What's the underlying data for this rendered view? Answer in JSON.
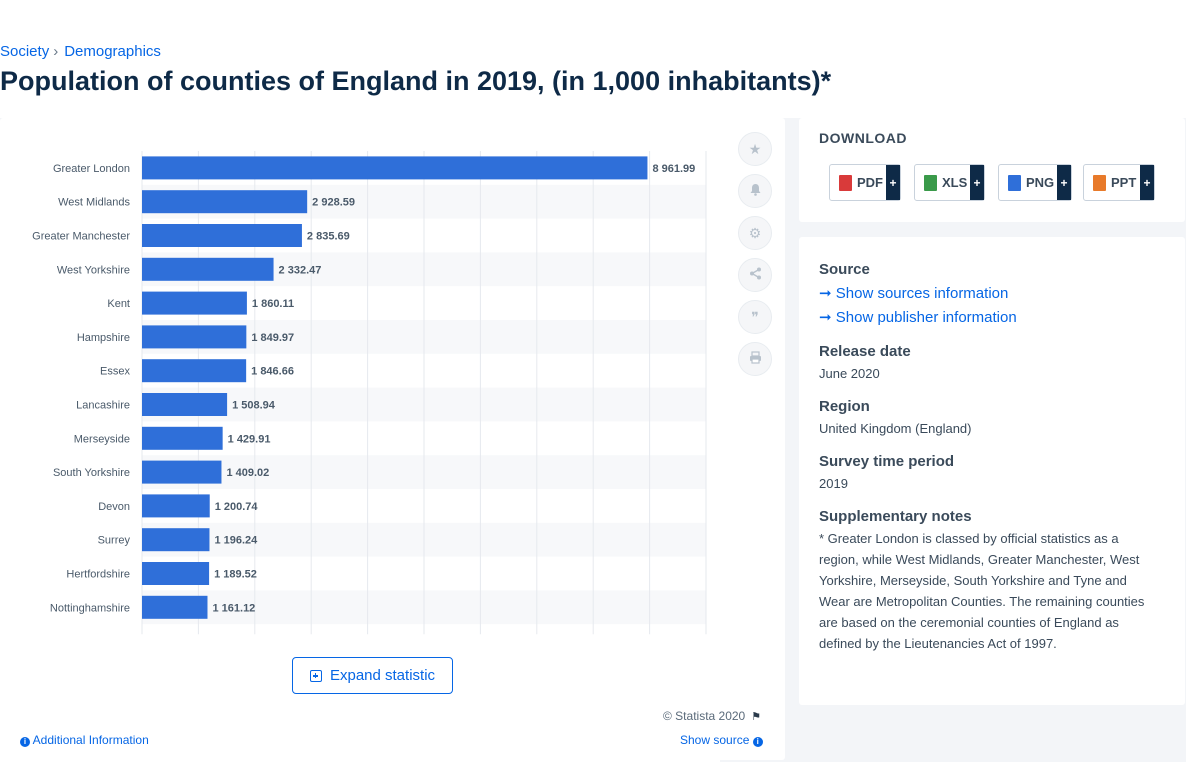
{
  "breadcrumb": {
    "items": [
      "Society",
      "Demographics"
    ],
    "separator": "›"
  },
  "page_title": "Population of counties of England in 2019, (in 1,000 inhabitants)*",
  "chart_data": {
    "type": "bar",
    "orientation": "horizontal",
    "categories": [
      "Greater London",
      "West Midlands",
      "Greater Manchester",
      "West Yorkshire",
      "Kent",
      "Hampshire",
      "Essex",
      "Lancashire",
      "Merseyside",
      "South Yorkshire",
      "Devon",
      "Surrey",
      "Hertfordshire",
      "Nottinghamshire"
    ],
    "values": [
      8961.99,
      2928.59,
      2835.69,
      2332.47,
      1860.11,
      1849.97,
      1846.66,
      1508.94,
      1429.91,
      1409.02,
      1200.74,
      1196.24,
      1189.52,
      1161.12
    ],
    "value_labels": [
      "8 961.99",
      "2 928.59",
      "2 835.69",
      "2 332.47",
      "1 860.11",
      "1 849.97",
      "1 846.66",
      "1 508.94",
      "1 429.91",
      "1 409.02",
      "1 200.74",
      "1 196.24",
      "1 189.52",
      "1 161.12"
    ],
    "xlim": [
      0,
      10000
    ],
    "grid": true,
    "bar_color": "#2f6fd9",
    "stripe_color": "#f7f8fa"
  },
  "chart_tools": [
    {
      "name": "star-icon",
      "glyph": "★"
    },
    {
      "name": "bell-icon",
      "glyph": "🔔"
    },
    {
      "name": "gear-icon",
      "glyph": "⚙"
    },
    {
      "name": "share-icon",
      "glyph": "<"
    },
    {
      "name": "quote-icon",
      "glyph": "❞"
    },
    {
      "name": "print-icon",
      "glyph": "⎙"
    }
  ],
  "expand_label": "Expand statistic",
  "copyright": "© Statista 2020",
  "additional_info": "Additional Information",
  "show_source": "Show source",
  "download": {
    "title": "DOWNLOAD",
    "buttons": [
      {
        "label": "PDF",
        "color": "#d93a3a"
      },
      {
        "label": "XLS",
        "color": "#3a9a4a"
      },
      {
        "label": "PNG",
        "color": "#2f6fd9"
      },
      {
        "label": "PPT",
        "color": "#e87a2a"
      }
    ],
    "plus": "+"
  },
  "info": {
    "source_label": "Source",
    "show_sources": "Show sources information",
    "show_publisher": "Show publisher information",
    "release_label": "Release date",
    "release_value": "June 2020",
    "region_label": "Region",
    "region_value": "United Kingdom (England)",
    "survey_label": "Survey time period",
    "survey_value": "2019",
    "notes_label": "Supplementary notes",
    "notes_value": "* Greater London is classed by official statistics as a region, while West Midlands, Greater Manchester, West Yorkshire, Merseyside, South Yorkshire and Tyne and Wear are Metropolitan Counties. The remaining counties are based on the ceremonial counties of England as defined by the Lieutenancies Act of 1997."
  }
}
